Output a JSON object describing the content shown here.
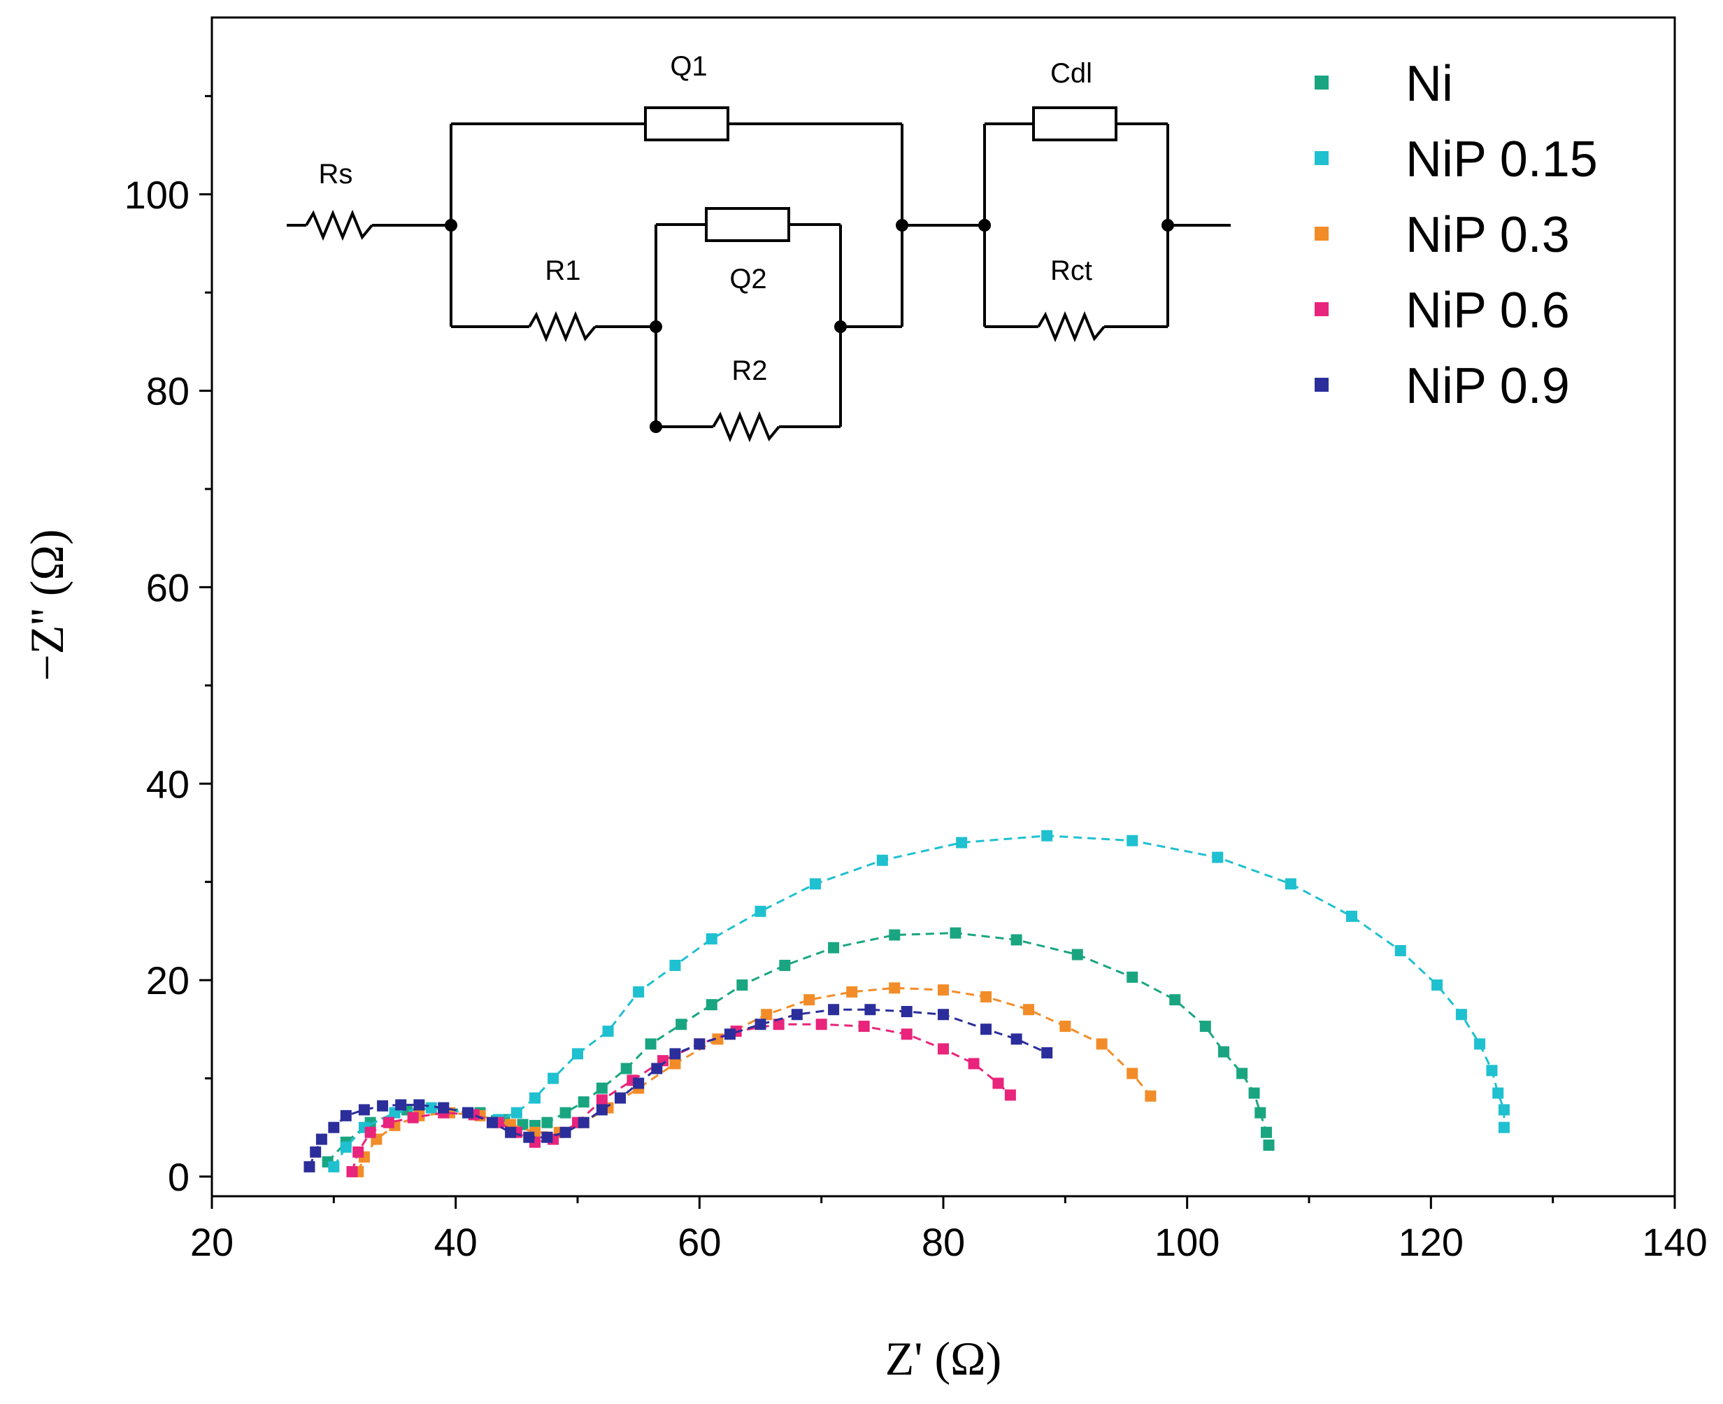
{
  "chart_data": {
    "type": "scatter",
    "title": "",
    "xlabel": "Z' (Ω)",
    "ylabel": "−Z'' (Ω)",
    "xlim": [
      20,
      140
    ],
    "ylim": [
      -2,
      118
    ],
    "xticks": [
      20,
      40,
      60,
      80,
      100,
      120,
      140
    ],
    "yticks": [
      0,
      20,
      40,
      60,
      80,
      100
    ],
    "grid": false,
    "legend_position": "top-right",
    "series": [
      {
        "name": "Ni",
        "color": "#1aa581",
        "x": [
          29.5,
          31,
          33,
          36,
          39,
          42,
          44,
          45.5,
          46.5,
          47.5,
          49,
          50.5,
          52,
          54,
          56,
          58.5,
          61,
          63.5,
          67,
          71,
          76,
          81,
          86,
          91,
          95.5,
          99,
          101.5,
          103,
          104.5,
          105.5,
          106,
          106.5,
          106.7
        ],
        "y": [
          1.5,
          3.5,
          5.5,
          6.8,
          7,
          6.5,
          5.8,
          5.3,
          5.2,
          5.5,
          6.5,
          7.6,
          9,
          11,
          13.5,
          15.5,
          17.5,
          19.5,
          21.5,
          23.3,
          24.6,
          24.8,
          24.1,
          22.6,
          20.3,
          18,
          15.3,
          12.7,
          10.5,
          8.5,
          6.5,
          4.5,
          3.2
        ]
      },
      {
        "name": "NiP 0.15",
        "color": "#1fc0d0",
        "x": [
          30,
          31,
          32.5,
          35,
          38,
          41,
          43.5,
          45,
          46.5,
          48,
          50,
          52.5,
          55,
          58,
          61,
          65,
          69.5,
          75,
          81.5,
          88.5,
          95.5,
          102.5,
          108.5,
          113.5,
          117.5,
          120.5,
          122.5,
          124,
          125,
          125.5,
          126,
          126
        ],
        "y": [
          1,
          3,
          5,
          6.5,
          7,
          6.5,
          5.8,
          6.5,
          8,
          10,
          12.5,
          14.8,
          18.8,
          21.5,
          24.2,
          27,
          29.8,
          32.2,
          34,
          34.7,
          34.2,
          32.5,
          29.8,
          26.5,
          23,
          19.5,
          16.5,
          13.5,
          10.8,
          8.5,
          6.8,
          5
        ]
      },
      {
        "name": "NiP 0.3",
        "color": "#f28c28",
        "x": [
          32,
          32.5,
          33.5,
          35,
          37,
          39.5,
          42,
          44.5,
          46.5,
          48.5,
          50.5,
          52.5,
          55,
          58,
          61.5,
          65.5,
          69,
          72.5,
          76,
          80,
          83.5,
          87,
          90,
          93,
          95.5,
          97
        ],
        "y": [
          0.5,
          2,
          3.8,
          5.2,
          6.2,
          6.5,
          6.2,
          5.3,
          4.5,
          4.5,
          5.5,
          7,
          9,
          11.5,
          14,
          16.5,
          18,
          18.8,
          19.2,
          19,
          18.3,
          17,
          15.3,
          13.5,
          10.5,
          8.2
        ]
      },
      {
        "name": "NiP 0.6",
        "color": "#e8247c",
        "x": [
          31.5,
          32,
          33,
          34.5,
          36.5,
          39,
          41.5,
          43.5,
          45,
          46.5,
          48,
          50,
          52,
          54.5,
          57,
          60,
          63,
          66.5,
          70,
          73.5,
          77,
          80,
          82.5,
          84.5,
          85.5
        ],
        "y": [
          0.5,
          2.5,
          4.5,
          5.5,
          6,
          6.5,
          6.3,
          5.5,
          4.5,
          3.5,
          3.8,
          5.5,
          7.8,
          9.8,
          11.8,
          13.5,
          14.8,
          15.5,
          15.5,
          15.3,
          14.5,
          13,
          11.5,
          9.5,
          8.3
        ]
      },
      {
        "name": "NiP 0.9",
        "color": "#2b2e9a",
        "x": [
          28,
          28.5,
          29,
          30,
          31,
          32.5,
          34,
          35.5,
          37,
          39,
          41,
          43,
          44.5,
          46,
          47.5,
          49,
          50.5,
          52,
          53.5,
          55,
          56.5,
          58,
          60,
          62.5,
          65,
          68,
          71,
          74,
          77,
          80,
          83.5,
          86,
          88.5
        ],
        "y": [
          1,
          2.5,
          3.8,
          5,
          6.2,
          6.8,
          7.2,
          7.3,
          7.3,
          7,
          6.5,
          5.5,
          4.5,
          4,
          4,
          4.5,
          5.5,
          6.8,
          8,
          9.5,
          11,
          12.5,
          13.5,
          14.5,
          15.5,
          16.5,
          17,
          17,
          16.8,
          16.5,
          15,
          14,
          12.6
        ]
      }
    ],
    "legend": [
      "Ni",
      "NiP 0.15",
      "NiP 0.3",
      "NiP 0.6",
      "NiP 0.9"
    ],
    "inset_circuit": {
      "labels": {
        "rs": "Rs",
        "q1": "Q1",
        "r1": "R1",
        "q2": "Q2",
        "r2": "R2",
        "cdl": "Cdl",
        "rct": "Rct"
      }
    }
  }
}
